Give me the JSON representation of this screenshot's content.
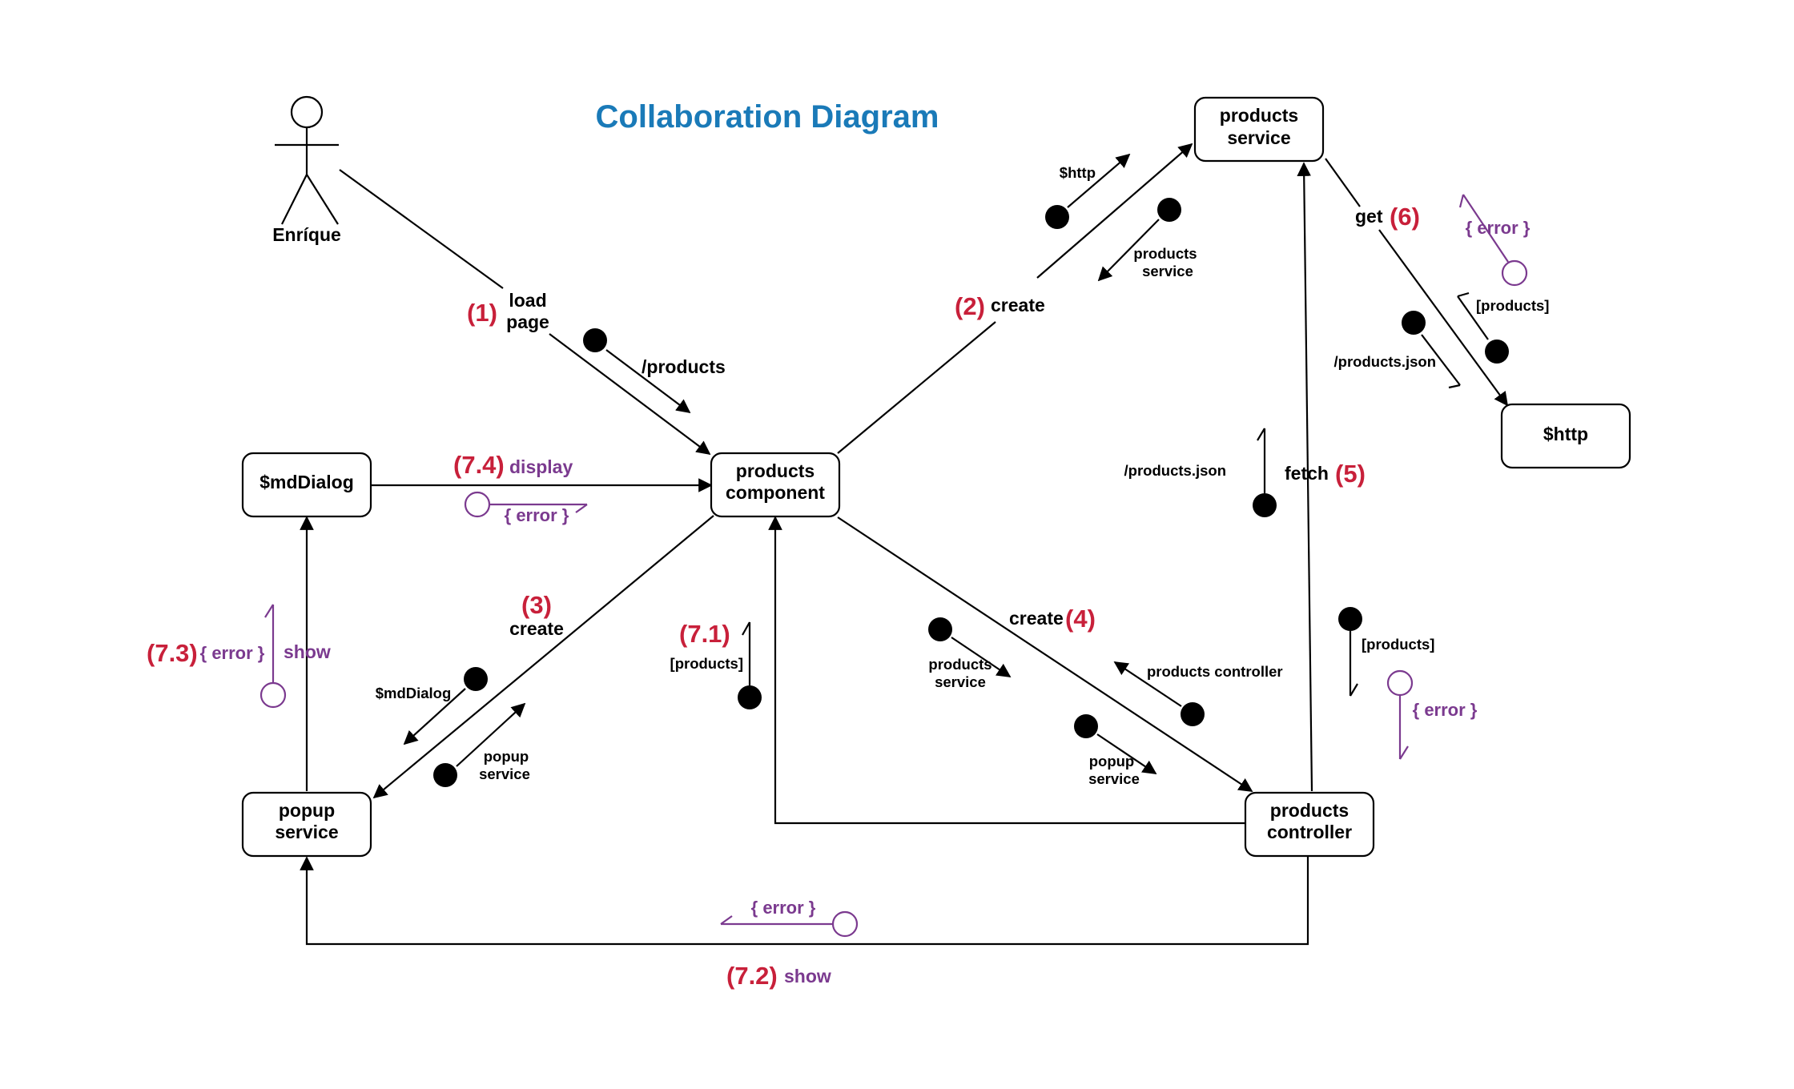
{
  "title": "Collaboration Diagram",
  "actor": {
    "name": "Enríque"
  },
  "nodes": {
    "products_service": [
      "products",
      "service"
    ],
    "http": [
      "$http"
    ],
    "mddialog": [
      "$mdDialog"
    ],
    "products_component": [
      "products",
      "component"
    ],
    "popup_service": [
      "popup",
      "service"
    ],
    "products_controller": [
      "products",
      "controller"
    ]
  },
  "messages": {
    "m1": {
      "num": "(1)",
      "label": [
        "load",
        "page"
      ]
    },
    "m2": {
      "num": "(2)",
      "label": "create"
    },
    "m3": {
      "num": "(3)",
      "label": "create"
    },
    "m4": {
      "num": "(4)",
      "label": "create"
    },
    "m5": {
      "num": "(5)",
      "label": "fetch"
    },
    "m6": {
      "num": "(6)",
      "label": "get"
    },
    "m71": {
      "num": "(7.1)"
    },
    "m72": {
      "num": "(7.2)",
      "label": "show"
    },
    "m73": {
      "num": "(7.3)",
      "label": "show"
    },
    "m74": {
      "num": "(7.4)",
      "label": "display"
    }
  },
  "data_flows": {
    "products_route": "/products",
    "http_param": "$http",
    "products_service_param": [
      "products",
      "service"
    ],
    "products_bracket_6": "[products]",
    "products_json_6": "/products.json",
    "products_json_5": "/products.json",
    "products_bracket_5": "[products]",
    "mddialog_param": "$mdDialog",
    "popup_service_param": [
      "popup",
      "service"
    ],
    "products_bracket_71": "[products]",
    "products_service_4": [
      "products",
      "service"
    ],
    "products_controller_4": "products controller",
    "popup_service_4": [
      "popup",
      "service"
    ]
  },
  "error_flows": {
    "e6": "{ error }",
    "e5": "{ error }",
    "e74": "{ error }",
    "e73": "{ error }",
    "e72": "{ error }"
  },
  "colors": {
    "title": "#1a7ab8",
    "number": "#c8203a",
    "error": "#7b3a8f",
    "line": "#000000"
  }
}
